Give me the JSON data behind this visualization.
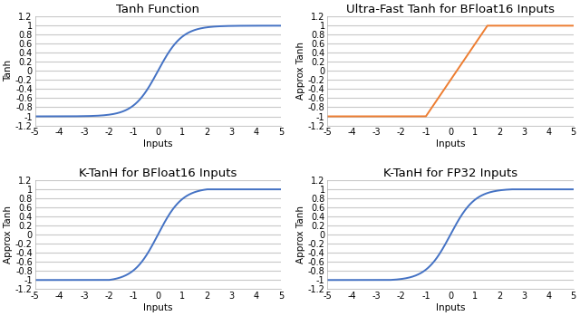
{
  "titles": [
    "Tanh Function",
    "Ultra-Fast Tanh for BFloat16 Inputs",
    "K-TanH for BFloat16 Inputs",
    "K-TanH for FP32 Inputs"
  ],
  "ylabels": [
    "Tanh",
    "Approx Tanh",
    "Approx Tanh",
    "Approx Tanh"
  ],
  "xlabel": "Inputs",
  "xlim": [
    -5,
    5
  ],
  "ylim": [
    -1.2,
    1.2
  ],
  "yticks": [
    -1.2,
    -1,
    -0.8,
    -0.6,
    -0.4,
    -0.2,
    0,
    0.2,
    0.4,
    0.6,
    0.8,
    1,
    1.2
  ],
  "xticks": [
    -5,
    -4,
    -3,
    -2,
    -1,
    0,
    1,
    2,
    3,
    4,
    5
  ],
  "line_colors": [
    "#4472C4",
    "#ED7D31",
    "#4472C4",
    "#4472C4"
  ],
  "bg_color": "#ffffff",
  "grid_color": "#c8c8c8",
  "title_fontsize": 9.5,
  "label_fontsize": 7.5,
  "tick_fontsize": 7,
  "linewidth": 1.4,
  "figsize": [
    6.4,
    3.49
  ],
  "dpi": 100
}
